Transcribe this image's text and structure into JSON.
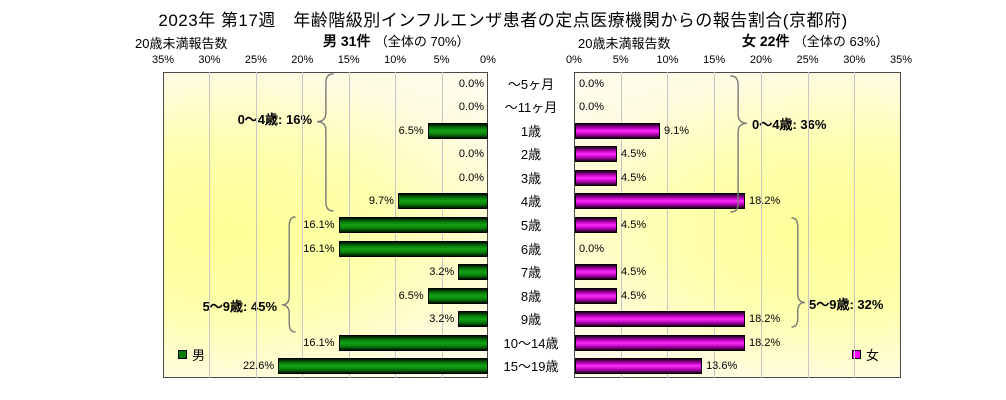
{
  "title": "2023年 第17週　年齢階級別インフルエンザ患者の定点医療機関からの報告割合(京都府)",
  "header": {
    "left_reports_label": "20歳未満報告数",
    "right_reports_label": "20歳未満報告数",
    "male_total": "男 31件",
    "male_share": "（全体の 70%）",
    "female_total": "女 22件",
    "female_share": "（全体の 63%）"
  },
  "chart_data": {
    "type": "bar",
    "orientation": "horizontal-pyramid",
    "title": "2023年 第17週　年齢階級別インフルエンザ患者の定点医療機関からの報告割合(京都府)",
    "categories": [
      "～5ヶ月",
      "～11ヶ月",
      "1歳",
      "2歳",
      "3歳",
      "4歳",
      "5歳",
      "6歳",
      "7歳",
      "8歳",
      "9歳",
      "10～14歳",
      "15～19歳"
    ],
    "xlim": [
      0,
      35
    ],
    "tick_labels": [
      "0%",
      "5%",
      "10%",
      "15%",
      "20%",
      "25%",
      "30%",
      "35%"
    ],
    "grid": "on",
    "series": [
      {
        "name": "男",
        "side": "left",
        "color": "#0a7a0a",
        "values": [
          0.0,
          0.0,
          6.5,
          0.0,
          0.0,
          9.7,
          16.1,
          16.1,
          3.2,
          6.5,
          3.2,
          16.1,
          22.6
        ],
        "labels": [
          "0.0%",
          "0.0%",
          "6.5%",
          "0.0%",
          "0.0%",
          "9.7%",
          "16.1%",
          "16.1%",
          "3.2%",
          "6.5%",
          "3.2%",
          "16.1%",
          "22.6%"
        ],
        "annotations": [
          "0～4歳: 16%",
          "5～9歳: 45%"
        ]
      },
      {
        "name": "女",
        "side": "right",
        "color": "#ff00ff",
        "values": [
          0.0,
          0.0,
          9.1,
          4.5,
          4.5,
          18.2,
          4.5,
          0.0,
          4.5,
          4.5,
          18.2,
          18.2,
          13.6
        ],
        "labels": [
          "0.0%",
          "0.0%",
          "9.1%",
          "4.5%",
          "4.5%",
          "18.2%",
          "4.5%",
          "0.0%",
          "4.5%",
          "4.5%",
          "18.2%",
          "18.2%",
          "13.6%"
        ],
        "annotations": [
          "0～4歳: 36%",
          "5～9歳: 32%"
        ]
      }
    ]
  }
}
